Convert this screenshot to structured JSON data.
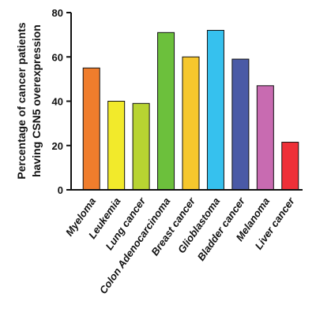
{
  "chart_data": {
    "type": "bar",
    "title": "",
    "xlabel": "",
    "ylabel_lines": [
      "Percentage of cancer patients",
      "having CSN5 overexpression"
    ],
    "ylim": [
      0,
      80
    ],
    "yticks": [
      "0",
      "20",
      "40",
      "60",
      "80"
    ],
    "categories": [
      "Myeloma",
      "Leukemia",
      "Lung cancer",
      "Colon Adenocarcinoma",
      "Breast cancer",
      "Glioblastoma",
      "Bladder cancer",
      "Melanoma",
      "Liver cancer"
    ],
    "values": [
      55,
      40,
      39,
      71,
      60,
      72,
      59,
      47,
      21.5
    ],
    "colors": [
      "#F07D2C",
      "#F2EA2B",
      "#B8D432",
      "#6CC03C",
      "#F6C72D",
      "#36C1EE",
      "#4A5AA6",
      "#C86BB1",
      "#EE3038"
    ],
    "grid": false,
    "legend": "none"
  }
}
